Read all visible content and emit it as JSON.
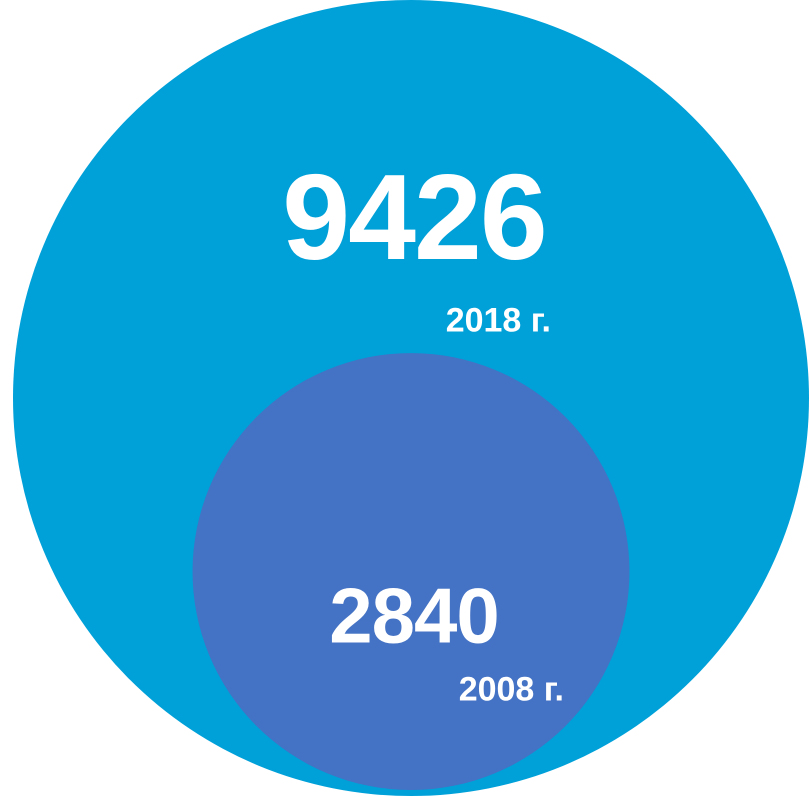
{
  "chart_data": {
    "type": "bubble",
    "categories": [
      "2018 г.",
      "2008 г."
    ],
    "values": [
      9426,
      2840
    ],
    "colors": [
      "#00a0d9",
      "#4472c4"
    ]
  }
}
